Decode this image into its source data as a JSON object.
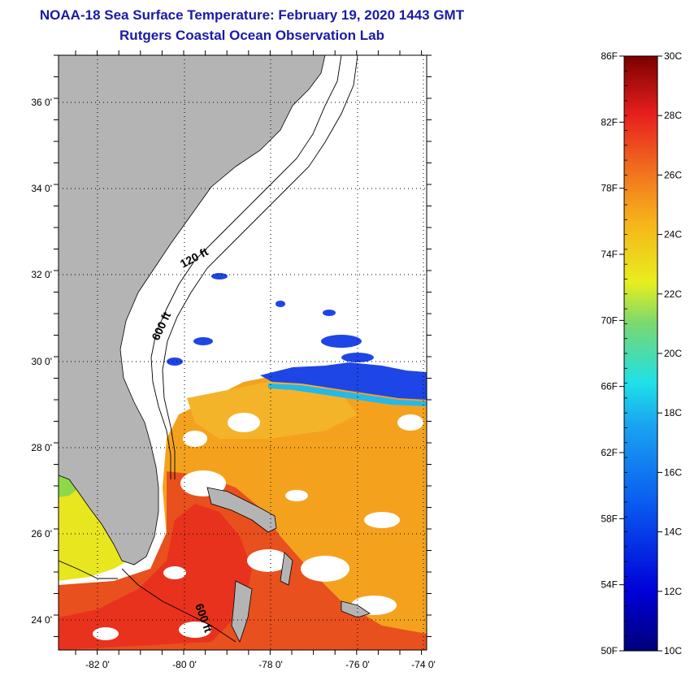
{
  "title": "NOAA-18 Sea Surface Temperature:  February 19, 2020 1443 GMT",
  "subtitle": "Rutgers Coastal Ocean Observation Lab",
  "map": {
    "lat_labels": [
      "36 0'",
      "34 0'",
      "32 0'",
      "30 0'",
      "28 0'",
      "26 0'",
      "24 0'"
    ],
    "lon_labels": [
      "-82 0'",
      "-80 0'",
      "-78 0'",
      "-76 0'",
      "-74 0'"
    ],
    "contour_labels": [
      "120 ft",
      "600 ft",
      "600 ft"
    ],
    "land_color": "#b4b4b4",
    "colors": {
      "warm": "#f06a1a",
      "hot": "#e8321e",
      "orange": "#f4a21e",
      "cold": "#1e46e6",
      "cyan": "#26b8e8",
      "yellow": "#e8e61e",
      "green": "#8ed84a"
    }
  },
  "colorbar": {
    "fahrenheit_labels": [
      "86F",
      "82F",
      "78F",
      "74F",
      "70F",
      "66F",
      "62F",
      "58F",
      "54F",
      "50F"
    ],
    "celsius_labels": [
      "30C",
      "28C",
      "26C",
      "24C",
      "22C",
      "20C",
      "18C",
      "16C",
      "14C",
      "12C",
      "10C"
    ],
    "range_c": [
      10,
      30
    ],
    "range_f": [
      50,
      86
    ]
  }
}
